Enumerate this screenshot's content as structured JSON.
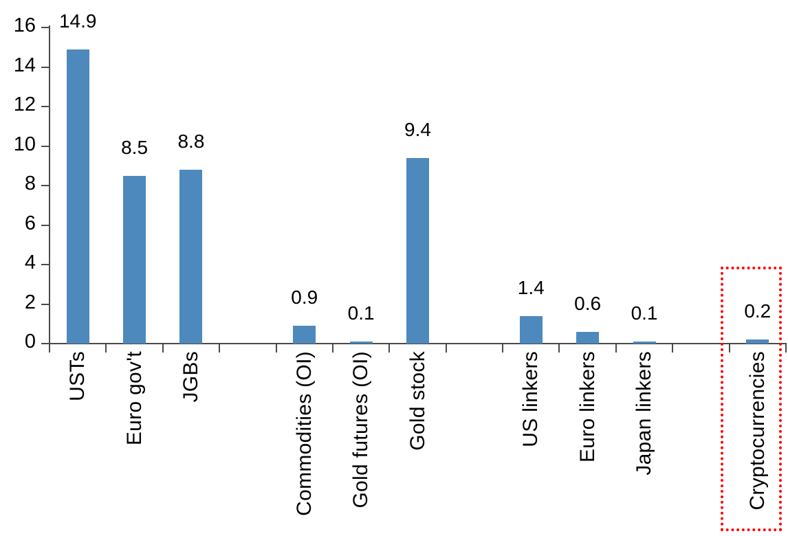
{
  "chart_data": {
    "type": "bar",
    "title": "",
    "xlabel": "",
    "ylabel": "",
    "categories": [
      "USTs",
      "Euro gov't",
      "JGBs",
      "Commodities (OI)",
      "Gold futures (OI)",
      "Gold stock",
      "US linkers",
      "Euro linkers",
      "Japan linkers",
      "Cryptocurrencies"
    ],
    "values": [
      14.9,
      8.5,
      8.8,
      0.9,
      0.1,
      9.4,
      1.4,
      0.6,
      0.1,
      0.2
    ],
    "data_labels": [
      "14.9",
      "8.5",
      "8.8",
      "0.9",
      "0.1",
      "9.4",
      "1.4",
      "0.6",
      "0.1",
      "0.2"
    ],
    "ylim": [
      0,
      16
    ],
    "yticks": [
      "0",
      "2",
      "4",
      "6",
      "8",
      "10",
      "12",
      "14",
      "16"
    ],
    "grid": false,
    "legend": null,
    "bar_color": "#4E89BD",
    "annotation": {
      "type": "highlight-box",
      "target_category": "Cryptocurrencies",
      "color": "#FF0000",
      "border_style": "dotted"
    },
    "layout": {
      "total_slots": 13,
      "slot_of_bar": [
        0,
        1,
        2,
        4,
        5,
        6,
        8,
        9,
        10,
        12
      ],
      "x_ticks_at_slot_boundaries": true,
      "category_labels_rotated_degrees": -90
    }
  },
  "colors": {
    "bar": "#4E89BD",
    "axis": "#4A4A4A",
    "text": "#000000",
    "highlight": "#FF0000",
    "background": "#FFFFFF"
  }
}
